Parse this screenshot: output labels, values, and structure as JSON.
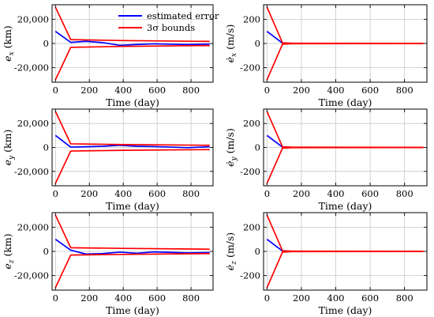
{
  "chart_data": [
    {
      "type": "line",
      "ylabel_sym": "e",
      "ylabel_sub": "x",
      "ylabel_unit": "(km)",
      "dot": false,
      "xlabel": "Time (day)",
      "xlim": [
        -20,
        930
      ],
      "ylim": [
        -32000,
        32000
      ],
      "xticks": [
        0,
        200,
        400,
        600,
        800
      ],
      "xtick_labels": [
        "0",
        "200",
        "400",
        "600",
        "800"
      ],
      "yticks": [
        -20000,
        0,
        20000
      ],
      "ytick_labels": [
        "-20,000",
        "0",
        "20,000"
      ],
      "legend": {
        "position": "top-right",
        "entries": [
          {
            "label": "estimated error",
            "color": "#0000ff"
          },
          {
            "label": "3σ bounds",
            "color": "#ff0000"
          }
        ]
      },
      "series": [
        {
          "name": "estimated error",
          "color": "#0000ff",
          "x": [
            0,
            90,
            180,
            280,
            380,
            480,
            580,
            680,
            780,
            910
          ],
          "y": [
            10000,
            900,
            1800,
            700,
            -1500,
            -800,
            -300,
            -600,
            -900,
            -500
          ]
        },
        {
          "name": "3σ bounds",
          "color": "#ff0000",
          "x": [
            0,
            90,
            400,
            910
          ],
          "y": [
            30000,
            3200,
            2400,
            1700
          ]
        },
        {
          "color": "#ff0000",
          "x": [
            0,
            90,
            400,
            910
          ],
          "y": [
            -30000,
            -3200,
            -2400,
            -1700
          ]
        }
      ]
    },
    {
      "type": "line",
      "ylabel_sym": "e",
      "ylabel_sub": "x",
      "ylabel_unit": "(m/s)",
      "dot": true,
      "xlabel": "Time (day)",
      "xlim": [
        -20,
        930
      ],
      "ylim": [
        -320,
        320
      ],
      "xticks": [
        0,
        200,
        400,
        600,
        800
      ],
      "xtick_labels": [
        "0",
        "200",
        "400",
        "600",
        "800"
      ],
      "yticks": [
        -200,
        0,
        200
      ],
      "ytick_labels": [
        "-200",
        "0",
        "200"
      ],
      "series": [
        {
          "color": "#0000ff",
          "x": [
            0,
            90,
            150,
            910
          ],
          "y": [
            100,
            3,
            0,
            0
          ]
        },
        {
          "color": "#ff0000",
          "x": [
            0,
            90,
            150,
            910
          ],
          "y": [
            300,
            6,
            2,
            1
          ]
        },
        {
          "color": "#ff0000",
          "x": [
            0,
            90,
            150,
            910
          ],
          "y": [
            -300,
            -6,
            -2,
            -1
          ]
        }
      ]
    },
    {
      "type": "line",
      "ylabel_sym": "e",
      "ylabel_sub": "y",
      "ylabel_unit": "(km)",
      "dot": false,
      "xlabel": "Time (day)",
      "xlim": [
        -20,
        930
      ],
      "ylim": [
        -32000,
        32000
      ],
      "xticks": [
        0,
        200,
        400,
        600,
        800
      ],
      "xtick_labels": [
        "0",
        "200",
        "400",
        "600",
        "800"
      ],
      "yticks": [
        -20000,
        0,
        20000
      ],
      "ytick_labels": [
        "-20,000",
        "0",
        "20,000"
      ],
      "series": [
        {
          "color": "#0000ff",
          "x": [
            0,
            90,
            180,
            280,
            380,
            480,
            580,
            680,
            780,
            910
          ],
          "y": [
            10000,
            300,
            600,
            1000,
            1800,
            1000,
            700,
            300,
            -200,
            600
          ]
        },
        {
          "color": "#ff0000",
          "x": [
            0,
            90,
            400,
            910
          ],
          "y": [
            30000,
            3000,
            2400,
            1800
          ]
        },
        {
          "color": "#ff0000",
          "x": [
            0,
            90,
            400,
            910
          ],
          "y": [
            -30000,
            -3000,
            -2400,
            -1800
          ]
        }
      ]
    },
    {
      "type": "line",
      "ylabel_sym": "e",
      "ylabel_sub": "y",
      "ylabel_unit": "(m/s)",
      "dot": true,
      "xlabel": "Time (day)",
      "xlim": [
        -20,
        930
      ],
      "ylim": [
        -320,
        320
      ],
      "xticks": [
        0,
        200,
        400,
        600,
        800
      ],
      "xtick_labels": [
        "0",
        "200",
        "400",
        "600",
        "800"
      ],
      "yticks": [
        -200,
        0,
        200
      ],
      "ytick_labels": [
        "-200",
        "0",
        "200"
      ],
      "series": [
        {
          "color": "#0000ff",
          "x": [
            0,
            90,
            150,
            910
          ],
          "y": [
            100,
            3,
            0,
            0
          ]
        },
        {
          "color": "#ff0000",
          "x": [
            0,
            90,
            150,
            910
          ],
          "y": [
            300,
            6,
            2,
            1
          ]
        },
        {
          "color": "#ff0000",
          "x": [
            0,
            90,
            150,
            910
          ],
          "y": [
            -300,
            -6,
            -2,
            -1
          ]
        }
      ]
    },
    {
      "type": "line",
      "ylabel_sym": "e",
      "ylabel_sub": "z",
      "ylabel_unit": "(km)",
      "dot": false,
      "xlabel": "Time (day)",
      "xlim": [
        -20,
        930
      ],
      "ylim": [
        -32000,
        32000
      ],
      "xticks": [
        0,
        200,
        400,
        600,
        800
      ],
      "xtick_labels": [
        "0",
        "200",
        "400",
        "600",
        "800"
      ],
      "yticks": [
        -20000,
        0,
        20000
      ],
      "ytick_labels": [
        "-20,000",
        "0",
        "20,000"
      ],
      "series": [
        {
          "color": "#0000ff",
          "x": [
            0,
            90,
            180,
            280,
            380,
            480,
            580,
            680,
            780,
            910
          ],
          "y": [
            10000,
            1000,
            -2200,
            -1800,
            -600,
            -1500,
            -400,
            -800,
            -1200,
            -1000
          ]
        },
        {
          "color": "#ff0000",
          "x": [
            0,
            90,
            400,
            910
          ],
          "y": [
            30000,
            3000,
            2500,
            1800
          ]
        },
        {
          "color": "#ff0000",
          "x": [
            0,
            90,
            400,
            910
          ],
          "y": [
            -30000,
            -3000,
            -2500,
            -1800
          ]
        }
      ]
    },
    {
      "type": "line",
      "ylabel_sym": "e",
      "ylabel_sub": "z",
      "ylabel_unit": "(m/s)",
      "dot": true,
      "xlabel": "Time (day)",
      "xlim": [
        -20,
        930
      ],
      "ylim": [
        -320,
        320
      ],
      "xticks": [
        0,
        200,
        400,
        600,
        800
      ],
      "xtick_labels": [
        "0",
        "200",
        "400",
        "600",
        "800"
      ],
      "yticks": [
        -200,
        0,
        200
      ],
      "ytick_labels": [
        "-200",
        "0",
        "200"
      ],
      "series": [
        {
          "color": "#0000ff",
          "x": [
            0,
            90,
            150,
            910
          ],
          "y": [
            100,
            3,
            0,
            0
          ]
        },
        {
          "color": "#ff0000",
          "x": [
            0,
            90,
            150,
            910
          ],
          "y": [
            300,
            6,
            2,
            1
          ]
        },
        {
          "color": "#ff0000",
          "x": [
            0,
            90,
            150,
            910
          ],
          "y": [
            -300,
            -6,
            -2,
            -1
          ]
        }
      ]
    }
  ]
}
